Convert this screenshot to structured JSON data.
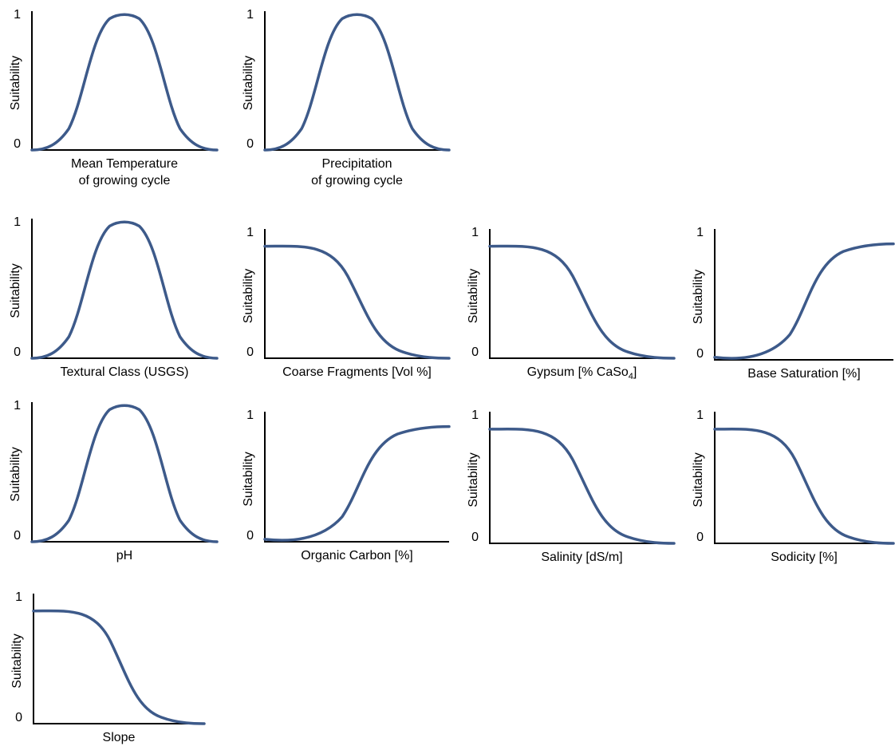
{
  "chart_data": [
    {
      "type": "line",
      "ylabel": "Suitability",
      "yticks": [
        "1",
        "0"
      ],
      "xlabel": [
        "Mean Temperature",
        "of growing cycle"
      ],
      "shape": "bell",
      "color": "#3d5a8a",
      "ylim": [
        0,
        1
      ],
      "y": [
        0,
        0.1,
        0.6,
        1,
        1,
        1,
        0.6,
        0.1,
        0
      ]
    },
    {
      "type": "line",
      "ylabel": "Suitability",
      "yticks": [
        "1",
        "0"
      ],
      "xlabel": [
        "Precipitation",
        "of growing cycle"
      ],
      "shape": "bell",
      "color": "#3d5a8a",
      "ylim": [
        0,
        1
      ],
      "y": [
        0,
        0.1,
        0.6,
        1,
        1,
        1,
        0.6,
        0.1,
        0
      ]
    },
    {
      "type": "line",
      "ylabel": "Suitability",
      "yticks": [
        "1",
        "0"
      ],
      "xlabel": [
        "Textural Class (USGS)"
      ],
      "shape": "bell",
      "color": "#3d5a8a",
      "ylim": [
        0,
        1
      ],
      "y": [
        0,
        0.1,
        0.6,
        1,
        1,
        1,
        0.6,
        0.1,
        0
      ]
    },
    {
      "type": "line",
      "ylabel": "Suitability",
      "yticks": [
        "1",
        "0"
      ],
      "xlabel": [
        "Coarse Fragments [Vol %]"
      ],
      "shape": "decreasing",
      "color": "#3d5a8a",
      "ylim": [
        0,
        1
      ],
      "y": [
        0.9,
        0.9,
        0.85,
        0.5,
        0.15,
        0.05,
        0
      ]
    },
    {
      "type": "line",
      "ylabel": "Suitability",
      "yticks": [
        "1",
        "0"
      ],
      "xlabel": [
        "Gypsum [% CaSo",
        {
          "sub": "4"
        },
        "]"
      ],
      "shape": "decreasing",
      "color": "#3d5a8a",
      "ylim": [
        0,
        1
      ],
      "y": [
        0.9,
        0.9,
        0.85,
        0.5,
        0.15,
        0.05,
        0
      ]
    },
    {
      "type": "line",
      "ylabel": "Suitability",
      "yticks": [
        "1",
        "0"
      ],
      "xlabel": [
        "Base Saturation [%]"
      ],
      "shape": "increasing",
      "color": "#3d5a8a",
      "ylim": [
        0,
        1
      ],
      "y": [
        0,
        0,
        0.05,
        0.4,
        0.8,
        0.9,
        0.9
      ]
    },
    {
      "type": "line",
      "ylabel": "Suitability",
      "yticks": [
        "1",
        "0"
      ],
      "xlabel": [
        "pH"
      ],
      "shape": "bell",
      "color": "#3d5a8a",
      "ylim": [
        0,
        1
      ],
      "y": [
        0,
        0.1,
        0.6,
        1,
        1,
        1,
        0.6,
        0.1,
        0
      ]
    },
    {
      "type": "line",
      "ylabel": "Suitability",
      "yticks": [
        "1",
        "0"
      ],
      "xlabel": [
        "Organic Carbon [%]"
      ],
      "shape": "increasing",
      "color": "#3d5a8a",
      "ylim": [
        0,
        1
      ],
      "y": [
        0,
        0,
        0.05,
        0.4,
        0.8,
        0.9,
        0.9
      ]
    },
    {
      "type": "line",
      "ylabel": "Suitability",
      "yticks": [
        "1",
        "0"
      ],
      "xlabel": [
        "Salinity [dS/m]"
      ],
      "shape": "decreasing",
      "color": "#3d5a8a",
      "ylim": [
        0,
        1
      ],
      "y": [
        0.9,
        0.9,
        0.85,
        0.5,
        0.15,
        0.05,
        0
      ]
    },
    {
      "type": "line",
      "ylabel": "Suitability",
      "yticks": [
        "1",
        "0"
      ],
      "xlabel": [
        "Sodicity [%]"
      ],
      "shape": "decreasing",
      "color": "#3d5a8a",
      "ylim": [
        0,
        1
      ],
      "y": [
        0.9,
        0.9,
        0.85,
        0.5,
        0.15,
        0.05,
        0
      ]
    },
    {
      "type": "line",
      "ylabel": "Suitability",
      "yticks": [
        "1",
        "0"
      ],
      "xlabel": [
        "Slope"
      ],
      "shape": "decreasing",
      "color": "#3d5a8a",
      "ylim": [
        0,
        1
      ],
      "y": [
        0.9,
        0.9,
        0.85,
        0.5,
        0.15,
        0.05,
        0
      ]
    }
  ]
}
